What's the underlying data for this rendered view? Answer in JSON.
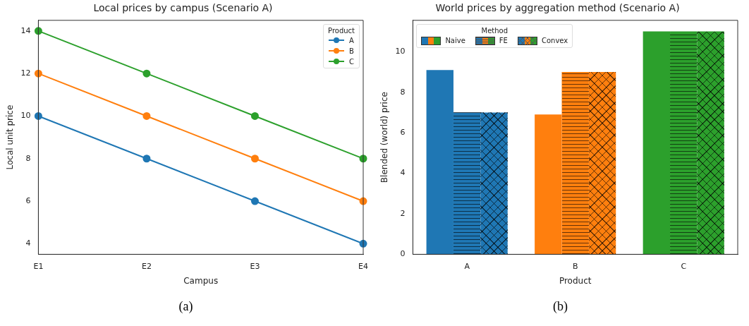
{
  "chart_data": [
    {
      "type": "line",
      "title": "Local prices by campus (Scenario A)",
      "xlabel": "Campus",
      "ylabel": "Local unit price",
      "categories": [
        "E1",
        "E2",
        "E3",
        "E4"
      ],
      "series": [
        {
          "name": "A",
          "color": "#1f77b4",
          "values": [
            10,
            8,
            6,
            4
          ]
        },
        {
          "name": "B",
          "color": "#ff7f0e",
          "values": [
            12,
            10,
            8,
            6
          ]
        },
        {
          "name": "C",
          "color": "#2ca02c",
          "values": [
            14,
            12,
            10,
            8
          ]
        }
      ],
      "ylim": [
        3.5,
        14.5
      ],
      "yticks": [
        4,
        6,
        8,
        10,
        12,
        14
      ],
      "legend": "top right",
      "legend_title": "Product",
      "marker": "circle",
      "annotations": [
        "(a)"
      ]
    },
    {
      "type": "bar",
      "title": "World prices by aggregation method (Scenario A)",
      "xlabel": "Product",
      "ylabel": "Blended (world) price",
      "categories": [
        "A",
        "B",
        "C"
      ],
      "series": [
        {
          "name": "Naive",
          "colors": [
            "#1f77b4",
            "#ff7f0e",
            "#2ca02c"
          ],
          "values": [
            9.1,
            6.9,
            11
          ]
        },
        {
          "name": "FE",
          "colors": [
            "#1f77b4",
            "#ff7f0e",
            "#2ca02c"
          ],
          "values": [
            7,
            9,
            11
          ]
        },
        {
          "name": "Convex",
          "colors": [
            "#1f77b4",
            "#ff7f0e",
            "#2ca02c"
          ],
          "values": [
            7,
            9,
            11
          ]
        }
      ],
      "ylim": [
        0,
        11.55
      ],
      "yticks": [
        0,
        2,
        4,
        6,
        8,
        10
      ],
      "legend": "top left",
      "legend_title": "Method",
      "annotations": [
        "(b)"
      ]
    }
  ]
}
